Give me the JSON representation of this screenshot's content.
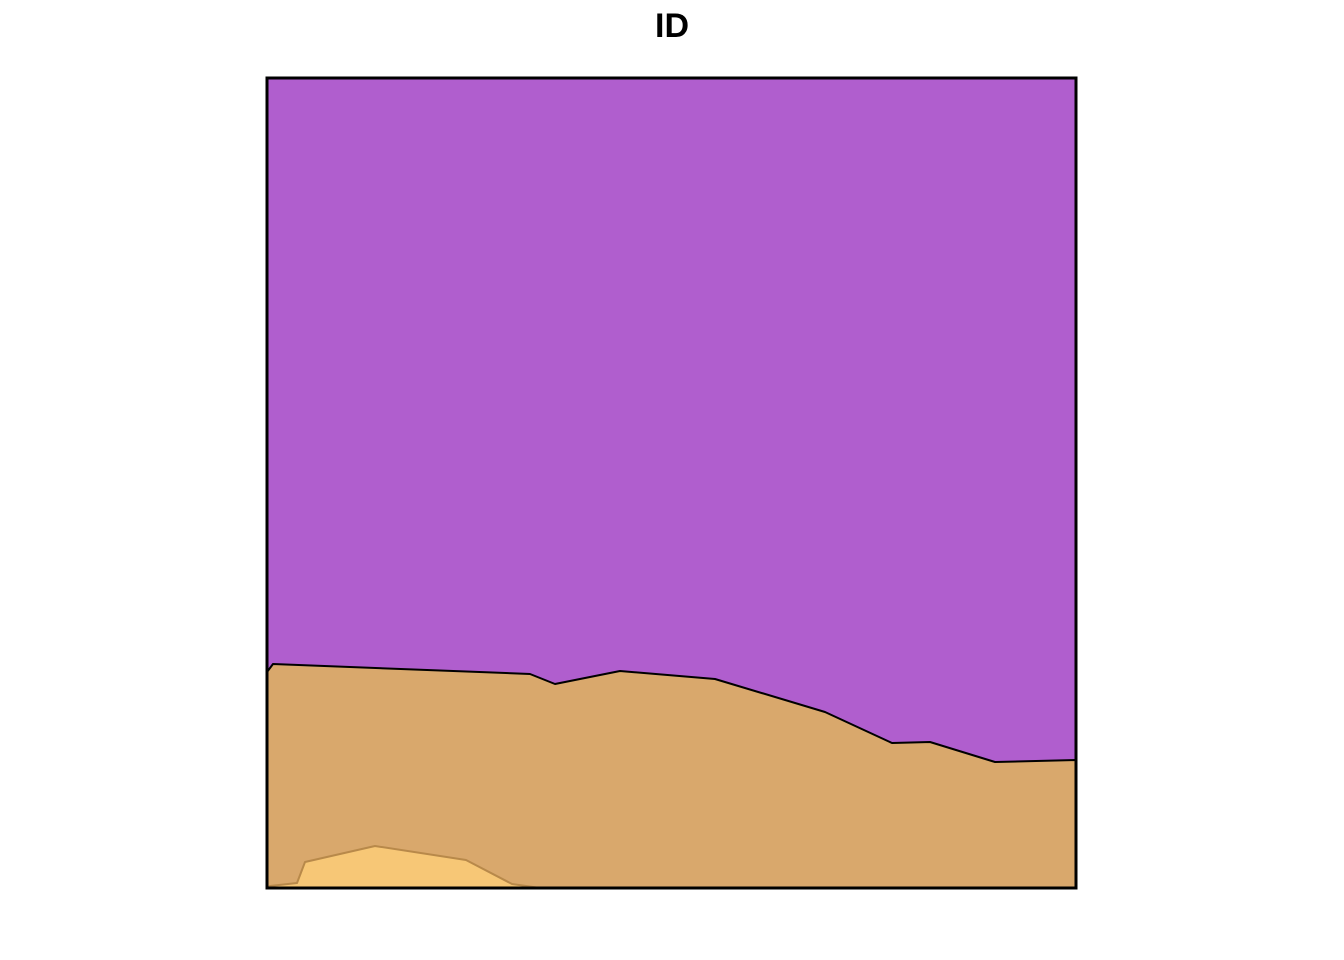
{
  "title": "ID",
  "colors": {
    "region_top": "#B05ECE",
    "region_middle": "#D9A86C",
    "region_bottom": "#F7C776",
    "region_bottom_edge": "#B8894A",
    "frame": "#000000",
    "background": "#FFFFFF"
  },
  "regions": [
    {
      "name": "region-top",
      "color_key": "region_top"
    },
    {
      "name": "region-middle",
      "color_key": "region_middle"
    },
    {
      "name": "region-bottom",
      "color_key": "region_bottom"
    }
  ]
}
